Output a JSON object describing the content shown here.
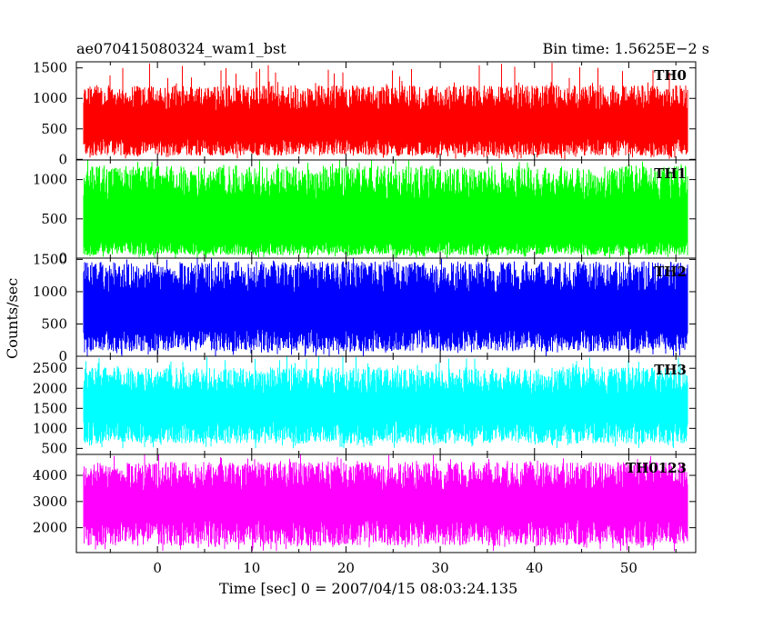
{
  "header": {
    "title": "ae070415080324_wam1_bst",
    "bin_time": "Bin time: 1.5625E−2 s"
  },
  "axes": {
    "ylabel": "Counts/sec",
    "xlabel": "Time [sec] 0 = 2007/04/15 08:03:24.135"
  },
  "chart_data": {
    "type": "line",
    "xlim": [
      -8.6,
      57.1
    ],
    "x_data_range": [
      -7.8,
      56.2
    ],
    "x_ticks": [
      0,
      10,
      20,
      30,
      40,
      50
    ],
    "x_tick_labels": [
      "0",
      "10",
      "20",
      "30",
      "40",
      "50"
    ],
    "series": [
      {
        "name": "TH0",
        "color": "#ff0000",
        "ylim": [
          -10,
          1600
        ],
        "y_ticks": [
          0,
          500,
          1000,
          1500
        ],
        "y_tick_labels": [
          "0",
          "500",
          "1000",
          "1500"
        ],
        "typical_low": 200,
        "typical_high": 950,
        "min": 0,
        "max": 1600
      },
      {
        "name": "TH1",
        "color": "#00ff00",
        "ylim": [
          0,
          1250
        ],
        "y_ticks": [
          0,
          500,
          1000
        ],
        "y_tick_labels": [
          "0",
          "500",
          "1000"
        ],
        "typical_low": 120,
        "typical_high": 900,
        "min": 0,
        "max": 1250
      },
      {
        "name": "TH2",
        "color": "#0000ff",
        "ylim": [
          0,
          1520
        ],
        "y_ticks": [
          0,
          500,
          1000,
          1500
        ],
        "y_tick_labels": [
          "0",
          "500",
          "1000",
          "1500"
        ],
        "typical_low": 250,
        "typical_high": 1150,
        "min": 0,
        "max": 1520
      },
      {
        "name": "TH3",
        "color": "#00ffff",
        "ylim": [
          350,
          2800
        ],
        "y_ticks": [
          500,
          1000,
          1500,
          2000,
          2500
        ],
        "y_tick_labels": [
          "500",
          "1000",
          "1500",
          "2000",
          "2500"
        ],
        "typical_low": 900,
        "typical_high": 2100,
        "min": 500,
        "max": 2800
      },
      {
        "name": "TH0123",
        "color": "#ff00ff",
        "ylim": [
          1050,
          4800
        ],
        "y_ticks": [
          2000,
          3000,
          4000
        ],
        "y_tick_labels": [
          "2000",
          "3000",
          "4000"
        ],
        "typical_low": 1800,
        "typical_high": 3800,
        "min": 1100,
        "max": 4800
      }
    ]
  }
}
